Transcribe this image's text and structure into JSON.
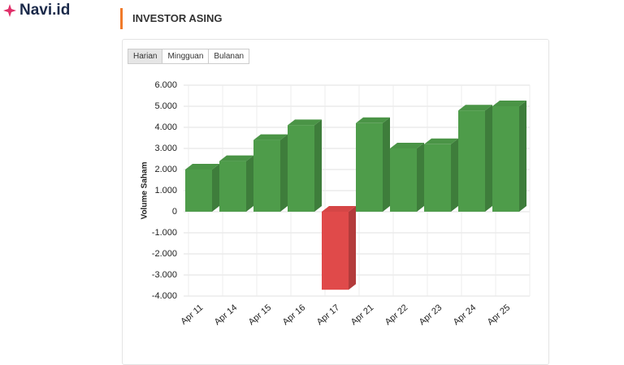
{
  "header": {
    "logo": "Navi.id",
    "section_title": "INVESTOR ASING"
  },
  "tabs": [
    "Harian",
    "Mingguan",
    "Bulanan"
  ],
  "chart_data": {
    "type": "bar3d",
    "y_label": "Volume Saham",
    "categories": [
      "Apr 11",
      "Apr 14",
      "Apr 15",
      "Apr 16",
      "Apr 17",
      "Apr 21",
      "Apr 22",
      "Apr 23",
      "Apr 24",
      "Apr 25"
    ],
    "values": [
      2000,
      2400,
      3400,
      4100,
      -3700,
      4200,
      3000,
      3200,
      4800,
      5000
    ],
    "positive_color": "#4e9c4a",
    "negative_color": "#e04a4a",
    "ylim": [
      -4000,
      6000
    ],
    "yticks": [
      {
        "value": -4000,
        "label": "-4.000"
      },
      {
        "value": -3000,
        "label": "-3.000"
      },
      {
        "value": -2000,
        "label": "-2.000"
      },
      {
        "value": -1000,
        "label": "-1.000"
      },
      0,
      {
        "value": 1000,
        "label": "1.000"
      },
      {
        "value": 2000,
        "label": "2.000"
      },
      {
        "value": 3000,
        "label": "3.000"
      },
      {
        "value": 4000,
        "label": "4.000"
      },
      {
        "value": 5000,
        "label": "5.000"
      },
      {
        "value": 6000,
        "label": "6.000"
      }
    ],
    "grid": true
  }
}
